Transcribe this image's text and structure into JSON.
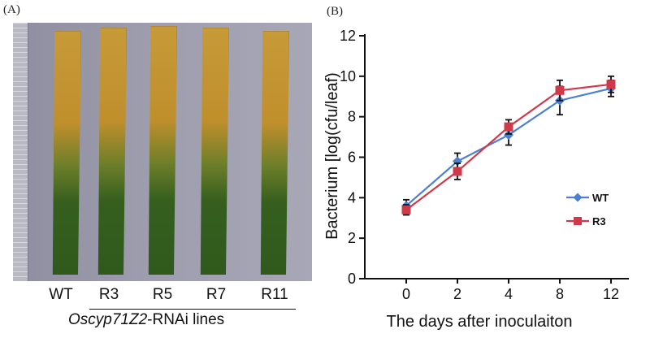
{
  "panel_a": {
    "label": "(A)",
    "lines": [
      "WT",
      "R3",
      "R5",
      "R7",
      "R11"
    ],
    "caption_italic": "Oscyp71Z2",
    "caption_rest": "-RNAi lines"
  },
  "panel_b": {
    "label": "(B)"
  },
  "chart_data": {
    "type": "line",
    "categories": [
      "0",
      "2",
      "4",
      "8",
      "12"
    ],
    "xlabel": "The days after inoculaiton",
    "ylabel": "Bacterium [log(cfu/leaf)",
    "ylim": [
      0,
      12
    ],
    "yticks": [
      0,
      2,
      4,
      6,
      8,
      10,
      12
    ],
    "grid": false,
    "legend_position": "middle-right",
    "series": [
      {
        "name": "WT",
        "color": "#4a7fd4",
        "marker": "diamond",
        "values": [
          3.6,
          5.8,
          7.1,
          8.8,
          9.4
        ],
        "errors": [
          0.3,
          0.4,
          0.5,
          0.7,
          0.4
        ]
      },
      {
        "name": "R3",
        "color": "#d0394a",
        "marker": "square",
        "values": [
          3.4,
          5.3,
          7.5,
          9.3,
          9.6
        ],
        "errors": [
          0.25,
          0.4,
          0.35,
          0.5,
          0.4
        ]
      }
    ]
  }
}
